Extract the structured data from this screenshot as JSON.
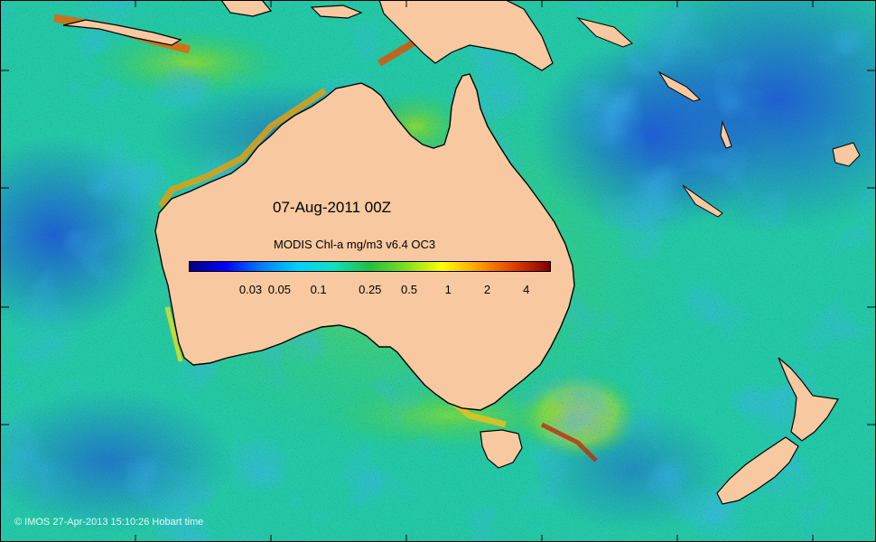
{
  "map": {
    "date_label": "07-Aug-2011 00Z",
    "product_title": "MODIS Chl-a mg/m3 v6.4 OC3",
    "credit": "© IMOS 27-Apr-2013 15:10:26 Hobart time",
    "land_color": "#f8c9a0",
    "colorbar": {
      "colors": [
        "#00007f",
        "#0000ff",
        "#007fff",
        "#00d0ff",
        "#10e0c0",
        "#20c040",
        "#7fdf1f",
        "#ffff00",
        "#ff9f00",
        "#df3f00",
        "#7f0000"
      ],
      "ticks": [
        {
          "label": "0.03",
          "value": 0.03
        },
        {
          "label": "0.05",
          "value": 0.05
        },
        {
          "label": "0.1",
          "value": 0.1
        },
        {
          "label": "0.25",
          "value": 0.25
        },
        {
          "label": "0.5",
          "value": 0.5
        },
        {
          "label": "1",
          "value": 1
        },
        {
          "label": "2",
          "value": 2
        },
        {
          "label": "4",
          "value": 4
        }
      ],
      "scale": "log",
      "range": [
        0.01,
        6
      ]
    }
  }
}
